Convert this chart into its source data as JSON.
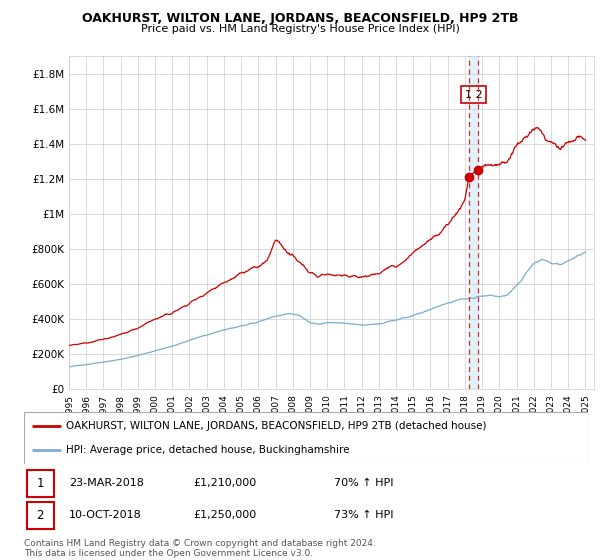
{
  "title": "OAKHURST, WILTON LANE, JORDANS, BEACONSFIELD, HP9 2TB",
  "subtitle": "Price paid vs. HM Land Registry's House Price Index (HPI)",
  "ylim": [
    0,
    1900000
  ],
  "yticks": [
    0,
    200000,
    400000,
    600000,
    800000,
    1000000,
    1200000,
    1400000,
    1600000,
    1800000
  ],
  "ytick_labels": [
    "£0",
    "£200K",
    "£400K",
    "£600K",
    "£800K",
    "£1M",
    "£1.2M",
    "£1.4M",
    "£1.6M",
    "£1.8M"
  ],
  "xlim_start": 1995.0,
  "xlim_end": 2025.5,
  "xtick_years": [
    1995,
    1996,
    1997,
    1998,
    1999,
    2000,
    2001,
    2002,
    2003,
    2004,
    2005,
    2006,
    2007,
    2008,
    2009,
    2010,
    2011,
    2012,
    2013,
    2014,
    2015,
    2016,
    2017,
    2018,
    2019,
    2020,
    2021,
    2022,
    2023,
    2024,
    2025
  ],
  "legend_red_label": "OAKHURST, WILTON LANE, JORDANS, BEACONSFIELD, HP9 2TB (detached house)",
  "legend_blue_label": "HPI: Average price, detached house, Buckinghamshire",
  "transaction1_date": "23-MAR-2018",
  "transaction1_price": "£1,210,000",
  "transaction1_hpi": "70% ↑ HPI",
  "transaction2_date": "10-OCT-2018",
  "transaction2_price": "£1,250,000",
  "transaction2_hpi": "73% ↑ HPI",
  "footer": "Contains HM Land Registry data © Crown copyright and database right 2024.\nThis data is licensed under the Open Government Licence v3.0.",
  "red_color": "#cc0000",
  "blue_color": "#7aadce",
  "marker1_x": 2018.22,
  "marker1_y": 1210000,
  "marker2_x": 2018.78,
  "marker2_y": 1250000,
  "vline1_x": 2018.22,
  "vline2_x": 2018.78,
  "background_color": "#ffffff",
  "grid_color": "#cccccc"
}
